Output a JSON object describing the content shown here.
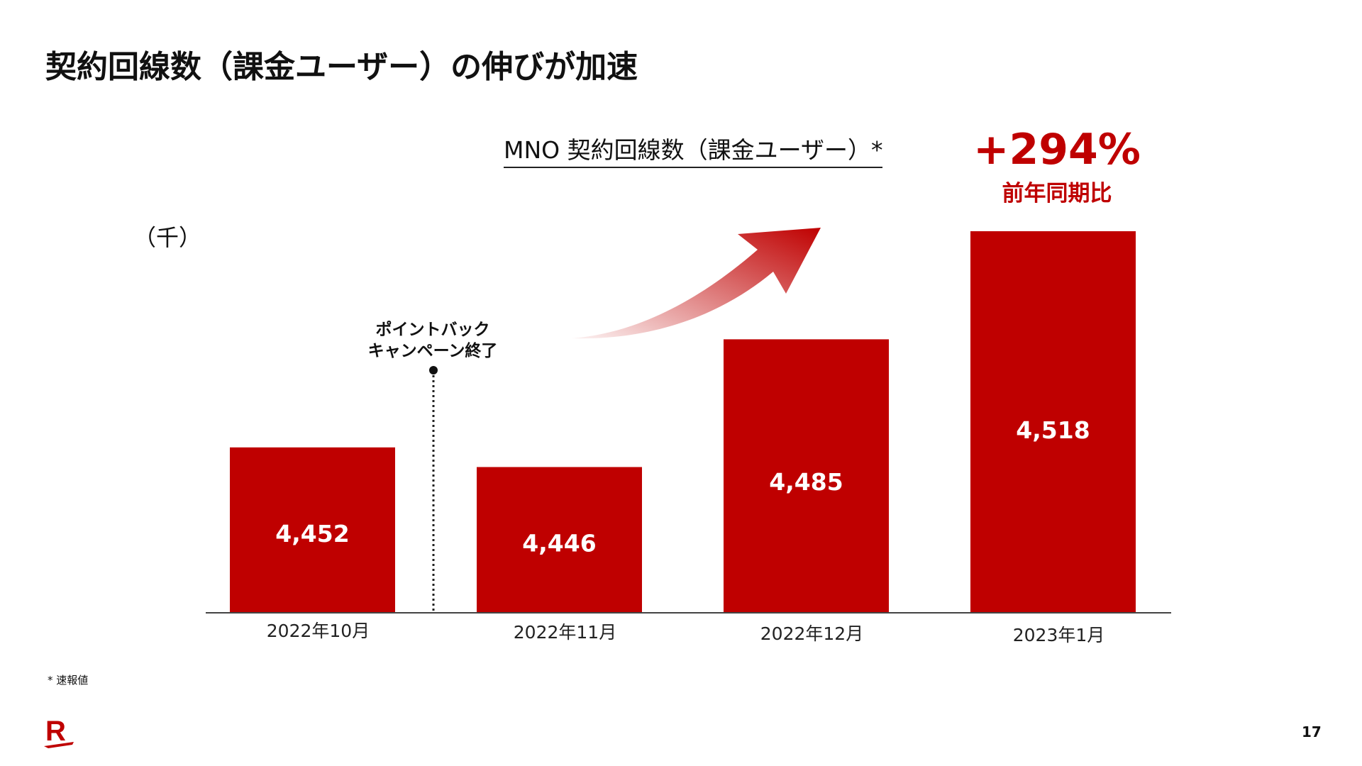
{
  "title": "契約回線数（課金ユーザー）の伸びが加速",
  "footnote": "* 速報値",
  "page_number": "17",
  "logo_text": "R",
  "colors": {
    "bar": "#bf0000",
    "accent": "#bf0000"
  },
  "chart_data": {
    "type": "bar",
    "title": "MNO 契約回線数（課金ユーザー）*",
    "ylabel": "（千）",
    "xlabel": "",
    "categories": [
      "2022年10月",
      "2022年11月",
      "2022年12月",
      "2023年1月"
    ],
    "values": [
      4452,
      4446,
      4485,
      4518
    ],
    "value_labels": [
      "4,452",
      "4,446",
      "4,485",
      "4,518"
    ],
    "ylim": [
      4401.5,
      4530
    ],
    "grid": false,
    "highlight": {
      "value": "+294%",
      "label": "前年同期比"
    },
    "annotation": {
      "line1": "ポイントバック",
      "line2": "キャンペーン終了",
      "between": [
        "2022年10月",
        "2022年11月"
      ]
    }
  }
}
